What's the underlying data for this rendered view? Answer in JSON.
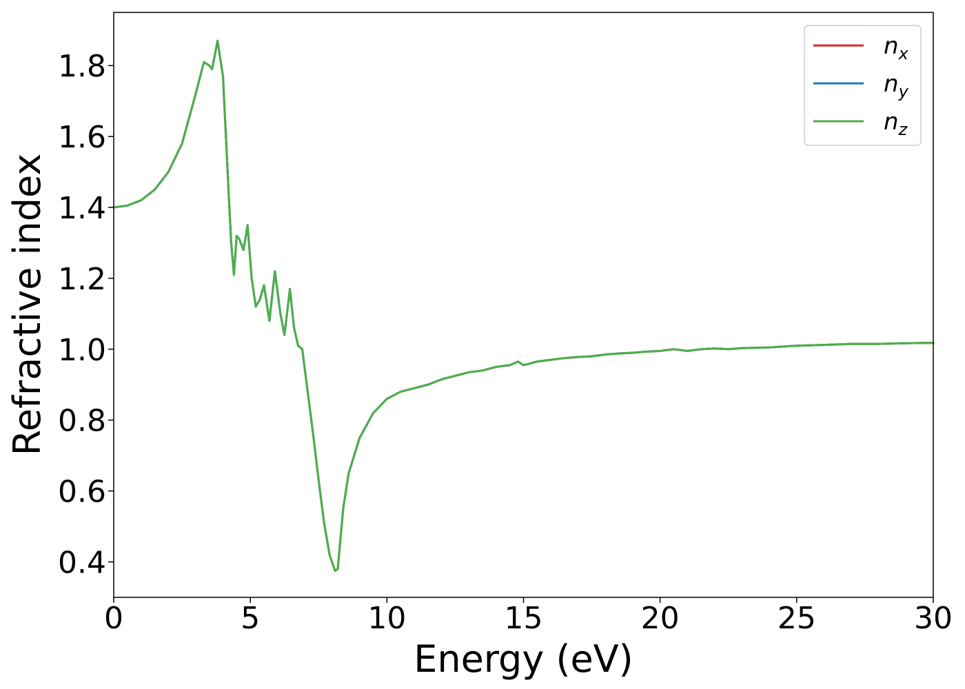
{
  "chart_data": {
    "type": "line",
    "title": "",
    "xlabel": "Energy (eV)",
    "ylabel": "Refractive index",
    "xlim": [
      0,
      30
    ],
    "ylim": [
      0.3,
      1.95
    ],
    "xticks": [
      0,
      5,
      10,
      15,
      20,
      25,
      30
    ],
    "xtick_labels": [
      "0",
      "5",
      "10",
      "15",
      "20",
      "25",
      "30"
    ],
    "yticks": [
      0.4,
      0.6,
      0.8,
      1.0,
      1.2,
      1.4,
      1.6,
      1.8
    ],
    "ytick_labels": [
      "0.4",
      "0.6",
      "0.8",
      "1.0",
      "1.2",
      "1.4",
      "1.6",
      "1.8"
    ],
    "grid": false,
    "legend_position": "top-right",
    "x": [
      0,
      0.5,
      1.0,
      1.5,
      2.0,
      2.5,
      3.0,
      3.3,
      3.5,
      3.6,
      3.8,
      4.0,
      4.2,
      4.3,
      4.4,
      4.5,
      4.6,
      4.75,
      4.9,
      5.05,
      5.2,
      5.35,
      5.5,
      5.7,
      5.9,
      6.1,
      6.25,
      6.45,
      6.6,
      6.75,
      6.9,
      7.1,
      7.3,
      7.5,
      7.7,
      7.9,
      8.1,
      8.2,
      8.4,
      8.6,
      9.0,
      9.5,
      10.0,
      10.5,
      11.0,
      11.5,
      12.0,
      12.5,
      13.0,
      13.5,
      14.0,
      14.5,
      14.8,
      15.0,
      15.5,
      16.0,
      16.5,
      17.0,
      17.5,
      18.0,
      18.5,
      19.0,
      19.5,
      20.0,
      20.5,
      21.0,
      21.5,
      22.0,
      22.5,
      23.0,
      24.0,
      25.0,
      26.0,
      27.0,
      28.0,
      29.0,
      30.0
    ],
    "series": [
      {
        "name": "n_x",
        "label_base": "n",
        "label_sub": "x",
        "color": "#d62728",
        "values": [
          1.4,
          1.405,
          1.42,
          1.45,
          1.5,
          1.58,
          1.72,
          1.81,
          1.8,
          1.79,
          1.87,
          1.77,
          1.45,
          1.3,
          1.21,
          1.32,
          1.31,
          1.28,
          1.35,
          1.2,
          1.12,
          1.14,
          1.18,
          1.08,
          1.22,
          1.1,
          1.04,
          1.17,
          1.06,
          1.01,
          1.0,
          0.88,
          0.76,
          0.63,
          0.51,
          0.42,
          0.375,
          0.38,
          0.55,
          0.65,
          0.75,
          0.82,
          0.86,
          0.88,
          0.89,
          0.9,
          0.915,
          0.925,
          0.935,
          0.94,
          0.95,
          0.955,
          0.965,
          0.955,
          0.965,
          0.97,
          0.975,
          0.978,
          0.98,
          0.985,
          0.988,
          0.99,
          0.993,
          0.995,
          1.0,
          0.995,
          1.0,
          1.002,
          1.0,
          1.003,
          1.005,
          1.01,
          1.012,
          1.015,
          1.015,
          1.017,
          1.018
        ]
      },
      {
        "name": "n_y",
        "label_base": "n",
        "label_sub": "y",
        "color": "#1f77b4",
        "values": [
          1.4,
          1.405,
          1.42,
          1.45,
          1.5,
          1.58,
          1.72,
          1.81,
          1.8,
          1.79,
          1.87,
          1.77,
          1.45,
          1.3,
          1.21,
          1.32,
          1.31,
          1.28,
          1.35,
          1.2,
          1.12,
          1.14,
          1.18,
          1.08,
          1.22,
          1.1,
          1.04,
          1.17,
          1.06,
          1.01,
          1.0,
          0.88,
          0.76,
          0.63,
          0.51,
          0.42,
          0.375,
          0.38,
          0.55,
          0.65,
          0.75,
          0.82,
          0.86,
          0.88,
          0.89,
          0.9,
          0.915,
          0.925,
          0.935,
          0.94,
          0.95,
          0.955,
          0.965,
          0.955,
          0.965,
          0.97,
          0.975,
          0.978,
          0.98,
          0.985,
          0.988,
          0.99,
          0.993,
          0.995,
          1.0,
          0.995,
          1.0,
          1.002,
          1.0,
          1.003,
          1.005,
          1.01,
          1.012,
          1.015,
          1.015,
          1.017,
          1.018
        ]
      },
      {
        "name": "n_z",
        "label_base": "n",
        "label_sub": "z",
        "color": "#4daf4a",
        "values": [
          1.4,
          1.405,
          1.42,
          1.45,
          1.5,
          1.58,
          1.72,
          1.81,
          1.8,
          1.79,
          1.87,
          1.77,
          1.45,
          1.3,
          1.21,
          1.32,
          1.31,
          1.28,
          1.35,
          1.2,
          1.12,
          1.14,
          1.18,
          1.08,
          1.22,
          1.1,
          1.04,
          1.17,
          1.06,
          1.01,
          1.0,
          0.88,
          0.76,
          0.63,
          0.51,
          0.42,
          0.375,
          0.38,
          0.55,
          0.65,
          0.75,
          0.82,
          0.86,
          0.88,
          0.89,
          0.9,
          0.915,
          0.925,
          0.935,
          0.94,
          0.95,
          0.955,
          0.965,
          0.955,
          0.965,
          0.97,
          0.975,
          0.978,
          0.98,
          0.985,
          0.988,
          0.99,
          0.993,
          0.995,
          1.0,
          0.995,
          1.0,
          1.002,
          1.0,
          1.003,
          1.005,
          1.01,
          1.012,
          1.015,
          1.015,
          1.017,
          1.018
        ]
      }
    ]
  }
}
